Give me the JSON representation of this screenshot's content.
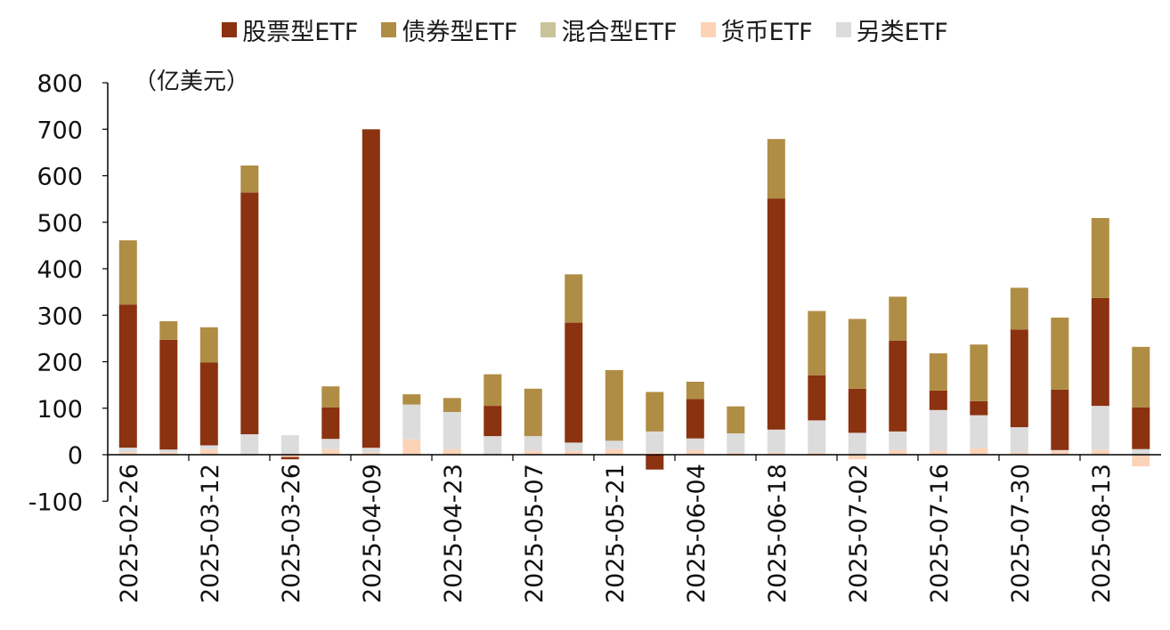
{
  "colors": {
    "stock": "#8B3210",
    "bond": "#B08D45",
    "mixed": "#C9C39A",
    "money": "#FDD3B8",
    "alt": "#DCDCDC",
    "axis": "#000000"
  },
  "legend": [
    {
      "key": "stock",
      "label": "股票型ETF"
    },
    {
      "key": "bond",
      "label": "债券型ETF"
    },
    {
      "key": "mixed",
      "label": "混合型ETF"
    },
    {
      "key": "money",
      "label": "货币ETF"
    },
    {
      "key": "alt",
      "label": "另类ETF"
    }
  ],
  "chart_data": {
    "type": "bar",
    "stacked": true,
    "unit_label": "（亿美元）",
    "ylim": [
      -100,
      800
    ],
    "yticks": [
      -100,
      0,
      100,
      200,
      300,
      400,
      500,
      600,
      700,
      800
    ],
    "x_tick_labels": [
      "2025-02-26",
      "2025-03-12",
      "2025-03-26",
      "2025-04-09",
      "2025-04-23",
      "2025-05-07",
      "2025-05-21",
      "2025-06-04",
      "2025-06-18",
      "2025-07-02",
      "2025-07-16",
      "2025-07-30",
      "2025-08-13"
    ],
    "categories": [
      "2025-02-26",
      "2025-03-05",
      "2025-03-12",
      "2025-03-19",
      "2025-03-26",
      "2025-04-02",
      "2025-04-09",
      "2025-04-16",
      "2025-04-23",
      "2025-04-30",
      "2025-05-07",
      "2025-05-14",
      "2025-05-21",
      "2025-05-28",
      "2025-06-04",
      "2025-06-11",
      "2025-06-18",
      "2025-06-25",
      "2025-07-02",
      "2025-07-09",
      "2025-07-16",
      "2025-07-23",
      "2025-07-30",
      "2025-08-06",
      "2025-08-13",
      "2025-08-20"
    ],
    "series": [
      {
        "key": "money",
        "name": "货币ETF",
        "values": [
          5,
          5,
          12,
          2,
          -5,
          12,
          5,
          33,
          12,
          2,
          8,
          8,
          12,
          4,
          10,
          4,
          4,
          4,
          -10,
          10,
          8,
          15,
          4,
          8,
          10,
          -25
        ]
      },
      {
        "key": "alt",
        "name": "另类ETF",
        "values": [
          10,
          6,
          8,
          42,
          42,
          22,
          10,
          75,
          80,
          38,
          32,
          18,
          18,
          46,
          25,
          42,
          50,
          70,
          47,
          40,
          88,
          70,
          55,
          2,
          95,
          12
        ]
      },
      {
        "key": "mixed",
        "name": "混合型ETF",
        "values": [
          0,
          0,
          0,
          0,
          0,
          0,
          0,
          0,
          0,
          0,
          0,
          0,
          0,
          0,
          0,
          0,
          0,
          0,
          0,
          0,
          0,
          0,
          0,
          0,
          0,
          0
        ]
      },
      {
        "key": "stock",
        "name": "股票型ETF",
        "values": [
          308,
          236,
          178,
          520,
          -5,
          68,
          685,
          0,
          0,
          65,
          0,
          258,
          0,
          -32,
          85,
          0,
          497,
          97,
          95,
          195,
          42,
          30,
          210,
          130,
          232,
          90
        ]
      },
      {
        "key": "bond",
        "name": "债券型ETF",
        "values": [
          138,
          40,
          76,
          58,
          0,
          45,
          0,
          22,
          30,
          68,
          102,
          104,
          152,
          85,
          37,
          58,
          128,
          138,
          150,
          95,
          80,
          122,
          90,
          155,
          172,
          130
        ]
      }
    ]
  }
}
